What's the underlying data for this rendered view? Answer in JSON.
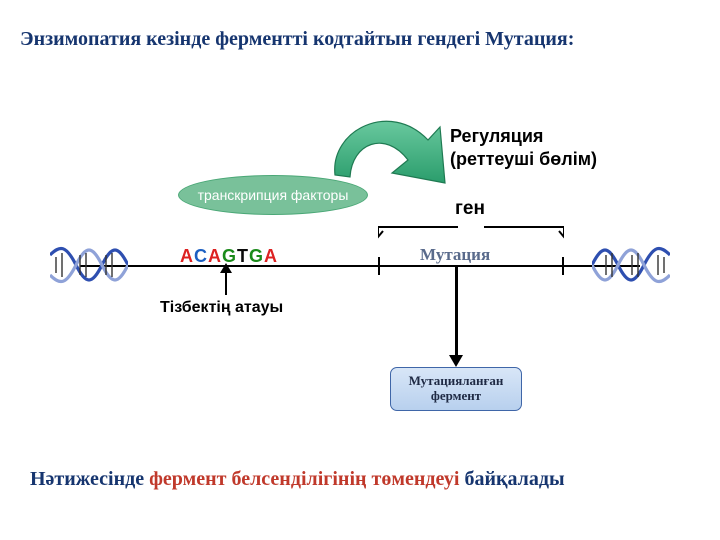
{
  "title": {
    "text": "Энзимопатия кезінде ферментті кодтайтын гендегі Мутация:",
    "color": "#16356f",
    "fontsize": 20
  },
  "diagram": {
    "regulation": {
      "line1": "Регуляция",
      "line2": "(реттеуші бөлім)",
      "fontsize": 18,
      "color": "#000000"
    },
    "gene_label": {
      "text": "ген",
      "fontsize": 19,
      "color": "#000000"
    },
    "transcription_factor": {
      "text": "транскрипция факторы",
      "fontsize": 14,
      "text_color": "#ffffff",
      "fill": "#79c19a",
      "stroke": "#4aa776"
    },
    "green_arrow": {
      "fill": "#2b9d6c",
      "fill_light": "#68c89e",
      "stroke": "#1f7a52"
    },
    "sequence": {
      "letters": [
        "A",
        "C",
        "A",
        "G",
        "T",
        "G",
        "A"
      ],
      "colors": [
        "#d22",
        "#1b5fc2",
        "#d22",
        "#1a8a1a",
        "#0a0a0a",
        "#1a8a1a",
        "#d22"
      ],
      "fontsize": 18
    },
    "sequence_label": {
      "text": "Тізбектің атауы",
      "fontsize": 16,
      "color": "#000000"
    },
    "mutation_label": {
      "text": "Мутация",
      "fontsize": 17,
      "color": "#5a6b8c"
    },
    "enzyme_box": {
      "line1": "Мутацияланған",
      "line2": "фермент",
      "fontsize": 13,
      "text_color": "#1f2a44",
      "fill_top": "#d8e6f7",
      "fill_bottom": "#b8d0ee",
      "border": "#3f66a8"
    },
    "helix": {
      "major": "#2e4fb0",
      "minor": "#8fa2d8",
      "rung": "#333333"
    },
    "bracket_color": "#000000"
  },
  "conclusion": {
    "pre": "Нәтижесінде ",
    "highlight": "фермент белсенділігінің төмендеуі",
    "post": " байқалады",
    "pre_color": "#16356f",
    "highlight_color": "#c0392b",
    "post_color": "#16356f",
    "fontsize": 20
  }
}
